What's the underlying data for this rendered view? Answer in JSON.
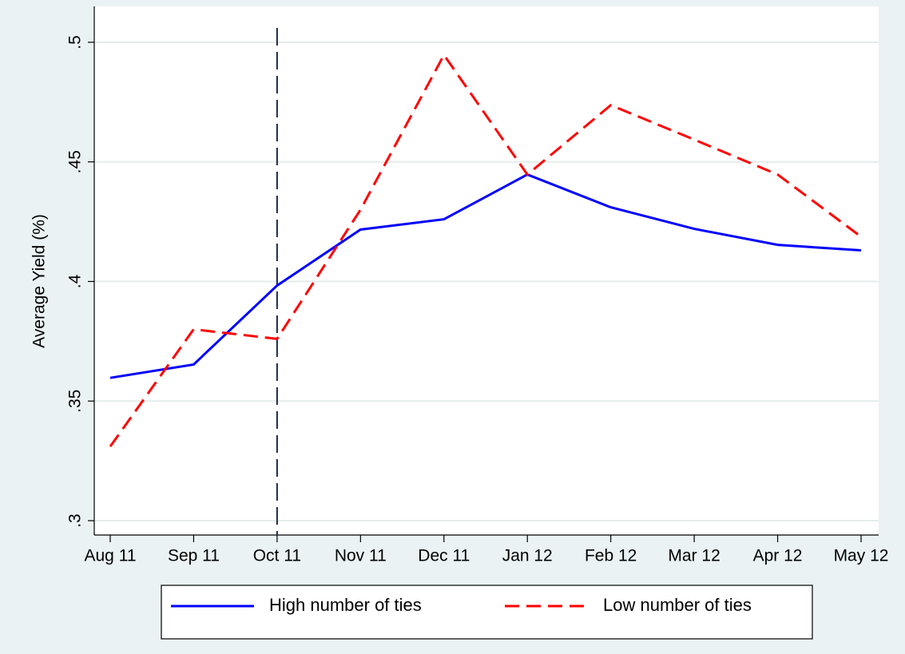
{
  "chart_data": {
    "type": "line",
    "y_label": "Average Yield (%)",
    "categories": [
      "Aug 11",
      "Sep 11",
      "Oct 11",
      "Nov 11",
      "Dec 11",
      "Jan 12",
      "Feb 12",
      "Mar 12",
      "Apr 12",
      "May 12"
    ],
    "series": [
      {
        "name": "High number of ties",
        "color": "#0000ff",
        "dash": false,
        "values": [
          0.3597,
          0.3653,
          0.3983,
          0.4217,
          0.426,
          0.4447,
          0.431,
          0.422,
          0.4153,
          0.413
        ]
      },
      {
        "name": "Low number of ties",
        "color": "#ff0000",
        "dash": true,
        "values": [
          0.331,
          0.38,
          0.376,
          0.43,
          0.4947,
          0.4447,
          0.4737,
          0.4593,
          0.4447,
          0.4187
        ]
      }
    ],
    "xline": "Oct 11",
    "ylim": [
      0.294,
      0.515
    ],
    "yticks": [
      {
        "value": 0.3,
        "label": ".3"
      },
      {
        "value": 0.35,
        "label": ".35"
      },
      {
        "value": 0.4,
        "label": ".4"
      },
      {
        "value": 0.45,
        "label": ".45"
      },
      {
        "value": 0.5,
        "label": ".5"
      }
    ],
    "grid": true,
    "legend": "bottom"
  }
}
